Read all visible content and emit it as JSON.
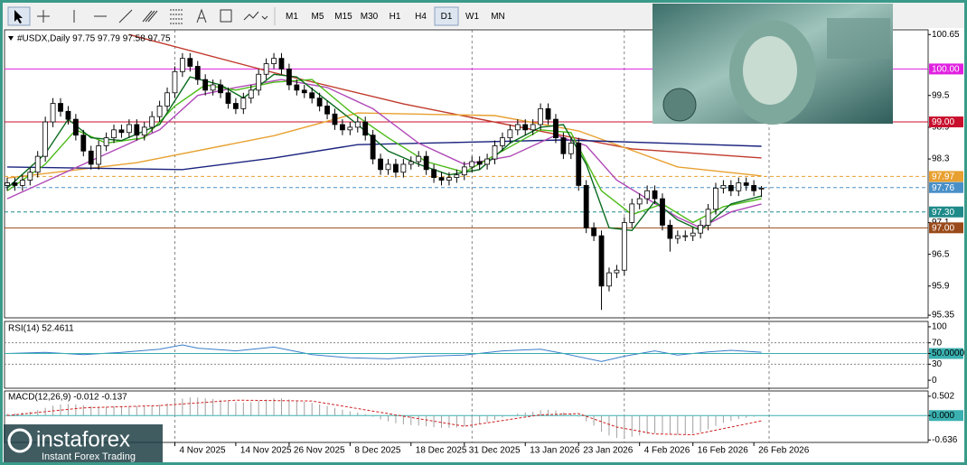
{
  "toolbar": {
    "timeframes": [
      "M1",
      "M5",
      "M15",
      "M30",
      "H1",
      "H4",
      "D1",
      "W1",
      "MN"
    ],
    "active": "D1"
  },
  "chart_data": [
    {
      "type": "candlestick",
      "title": "#USDX,Daily  97.75 97.79 97.58 97.75",
      "up_color": "#ffffff",
      "down_color": "#000000",
      "open": [
        97.8,
        97.85,
        97.8,
        97.9,
        98.05,
        98.35,
        99.0,
        99.35,
        99.2,
        99.05,
        98.75,
        98.45,
        98.2,
        98.55,
        98.7,
        98.85,
        98.8,
        98.95,
        98.75,
        98.9,
        99.1,
        99.3,
        99.55,
        99.95,
        100.2,
        100.05,
        99.8,
        99.6,
        99.7,
        99.55,
        99.35,
        99.25,
        99.45,
        99.6,
        99.9,
        100.1,
        100.2,
        100.0,
        99.7,
        99.6,
        99.55,
        99.45,
        99.3,
        99.15,
        98.95,
        98.85,
        98.9,
        99.0,
        98.75,
        98.3,
        98.1,
        98.2,
        98.05,
        98.2,
        98.25,
        98.35,
        98.1,
        97.95,
        97.9,
        97.95,
        98.0,
        98.15,
        98.25,
        98.2,
        98.3,
        98.55,
        98.7,
        98.85,
        98.95,
        98.85,
        98.95,
        99.25,
        99.05,
        98.7,
        98.4,
        98.6,
        97.8,
        97.0,
        96.85,
        95.9,
        96.15,
        96.2,
        97.1,
        97.45,
        97.55,
        97.7,
        97.55,
        97.05,
        96.8,
        96.85,
        96.85,
        96.9,
        97.05,
        97.35,
        97.75,
        97.8,
        97.7,
        97.85,
        97.8,
        97.75
      ],
      "high": [
        97.95,
        97.95,
        98.0,
        98.15,
        98.45,
        99.1,
        99.45,
        99.45,
        99.3,
        99.15,
        98.85,
        98.55,
        98.65,
        98.8,
        98.95,
        98.95,
        99.05,
        99.05,
        99.0,
        99.2,
        99.4,
        99.65,
        100.05,
        100.3,
        100.3,
        100.15,
        99.9,
        99.8,
        99.8,
        99.65,
        99.45,
        99.55,
        99.7,
        100.0,
        100.2,
        100.3,
        100.3,
        100.1,
        99.8,
        99.7,
        99.65,
        99.55,
        99.4,
        99.25,
        99.05,
        99.0,
        99.1,
        99.1,
        98.85,
        98.4,
        98.3,
        98.3,
        98.3,
        98.35,
        98.45,
        98.45,
        98.2,
        98.05,
        98.05,
        98.1,
        98.25,
        98.35,
        98.35,
        98.4,
        98.65,
        98.8,
        98.95,
        99.05,
        99.05,
        99.05,
        99.35,
        99.35,
        99.15,
        98.8,
        98.7,
        98.7,
        97.9,
        97.1,
        96.95,
        96.25,
        96.3,
        97.2,
        97.55,
        97.65,
        97.8,
        97.8,
        97.65,
        97.15,
        96.95,
        96.95,
        97.0,
        97.15,
        97.45,
        97.85,
        97.9,
        97.9,
        97.95,
        97.95,
        97.9,
        97.79
      ],
      "low": [
        97.7,
        97.7,
        97.7,
        97.8,
        97.95,
        98.25,
        98.9,
        99.1,
        98.95,
        98.65,
        98.35,
        98.1,
        98.1,
        98.45,
        98.6,
        98.7,
        98.7,
        98.65,
        98.65,
        98.8,
        99.0,
        99.2,
        99.45,
        99.85,
        99.95,
        99.7,
        99.5,
        99.5,
        99.45,
        99.25,
        99.15,
        99.15,
        99.35,
        99.5,
        99.8,
        100.0,
        99.9,
        99.6,
        99.5,
        99.45,
        99.35,
        99.2,
        99.05,
        98.85,
        98.75,
        98.75,
        98.8,
        98.65,
        98.2,
        98.0,
        98.0,
        97.95,
        97.95,
        98.1,
        98.15,
        98.0,
        97.85,
        97.8,
        97.8,
        97.85,
        97.9,
        98.05,
        98.1,
        98.1,
        98.2,
        98.45,
        98.6,
        98.75,
        98.75,
        98.75,
        98.85,
        98.95,
        98.6,
        98.3,
        98.3,
        97.7,
        96.9,
        96.75,
        95.45,
        95.8,
        96.05,
        96.1,
        97.0,
        97.35,
        97.45,
        97.45,
        96.95,
        96.55,
        96.7,
        96.75,
        96.75,
        96.8,
        96.95,
        97.25,
        97.65,
        97.6,
        97.6,
        97.7,
        97.6,
        97.58
      ],
      "close": [
        97.85,
        97.8,
        97.9,
        98.05,
        98.35,
        99.0,
        99.35,
        99.2,
        99.05,
        98.75,
        98.45,
        98.2,
        98.55,
        98.7,
        98.85,
        98.8,
        98.95,
        98.75,
        98.9,
        99.1,
        99.3,
        99.55,
        99.95,
        100.2,
        100.05,
        99.8,
        99.6,
        99.7,
        99.55,
        99.35,
        99.25,
        99.45,
        99.6,
        99.9,
        100.1,
        100.2,
        100.0,
        99.7,
        99.6,
        99.55,
        99.45,
        99.3,
        99.15,
        98.95,
        98.85,
        98.9,
        99.0,
        98.75,
        98.3,
        98.1,
        98.2,
        98.05,
        98.2,
        98.25,
        98.35,
        98.1,
        97.95,
        97.9,
        97.95,
        98.0,
        98.15,
        98.25,
        98.2,
        98.3,
        98.55,
        98.7,
        98.85,
        98.95,
        98.85,
        98.95,
        99.25,
        99.05,
        98.7,
        98.4,
        98.6,
        97.8,
        97.0,
        96.85,
        95.9,
        96.15,
        96.2,
        97.1,
        97.45,
        97.55,
        97.7,
        97.55,
        97.05,
        96.8,
        96.85,
        96.85,
        96.9,
        97.05,
        97.35,
        97.75,
        97.8,
        97.7,
        97.85,
        97.8,
        97.7,
        97.75
      ],
      "ylim": [
        95.3,
        100.74
      ],
      "yticks": [
        100.65,
        99.5,
        98.9,
        98.3,
        97.1,
        96.5,
        95.9,
        95.35
      ],
      "x_labels": [
        {
          "bar": 22,
          "label": "4 Nov 2025"
        },
        {
          "bar": 30,
          "label": "14 Nov 2025"
        },
        {
          "bar": 37,
          "label": "26 Nov 2025"
        },
        {
          "bar": 45,
          "label": "8 Dec 2025"
        },
        {
          "bar": 53,
          "label": "18 Dec 2025"
        },
        {
          "bar": 60,
          "label": "31 Dec 2025"
        },
        {
          "bar": 68,
          "label": "13 Jan 2026"
        },
        {
          "bar": 75,
          "label": "23 Jan 2026"
        },
        {
          "bar": 83,
          "label": "4 Feb 2026"
        },
        {
          "bar": 90,
          "label": "16 Feb 2026"
        },
        {
          "bar": 98,
          "label": "26 Feb 2026"
        }
      ],
      "separators": [
        22,
        61,
        81,
        100
      ],
      "levels": [
        {
          "value": 100.0,
          "label": "100.00",
          "color": "#e020e0",
          "style": "solid"
        },
        {
          "value": 99.0,
          "label": "99.00",
          "color": "#c8102e",
          "style": "solid"
        },
        {
          "value": 97.97,
          "label": "97.97",
          "color": "#e8a030",
          "style": "dashed"
        },
        {
          "value": 97.76,
          "label": "97.76",
          "color": "#4a90c8",
          "style": "dashed"
        },
        {
          "value": 97.3,
          "label": "97.30",
          "color": "#1e8a8a",
          "style": "dashed"
        },
        {
          "value": 97.0,
          "label": "97.00",
          "color": "#9a4a1a",
          "style": "solid"
        }
      ],
      "moving_averages": [
        {
          "color": "#c0392b",
          "x": [
            16,
            35,
            52,
            73,
            82,
            99
          ],
          "values": [
            100.65,
            99.93,
            99.34,
            98.74,
            98.49,
            98.32
          ]
        },
        {
          "color": "#e8a030",
          "x": [
            0,
            17,
            35,
            46,
            64,
            75,
            88,
            99
          ],
          "values": [
            97.94,
            98.23,
            98.74,
            99.17,
            99.12,
            98.83,
            98.15,
            97.98
          ]
        },
        {
          "color": "#1a237e",
          "x": [
            0,
            23,
            35,
            46,
            58,
            73,
            99
          ],
          "values": [
            98.15,
            98.1,
            98.32,
            98.57,
            98.61,
            98.66,
            98.54
          ]
        },
        {
          "color": "#b04ab8",
          "x": [
            0,
            10,
            20,
            25,
            30,
            36,
            42,
            48,
            54,
            60,
            66,
            72,
            76,
            80,
            84,
            88,
            91,
            95,
            99
          ],
          "values": [
            97.55,
            98.2,
            98.85,
            99.5,
            99.65,
            99.8,
            99.65,
            99.25,
            98.6,
            98.2,
            98.35,
            98.75,
            98.55,
            97.9,
            97.55,
            97.2,
            97.0,
            97.3,
            97.45
          ]
        },
        {
          "color": "#4cbb17",
          "x": [
            0,
            5,
            9,
            13,
            18,
            22,
            26,
            30,
            35,
            40,
            45,
            50,
            55,
            60,
            65,
            70,
            74,
            78,
            82,
            86,
            90,
            94,
            99
          ],
          "values": [
            97.7,
            98.2,
            98.85,
            98.6,
            98.7,
            99.3,
            99.7,
            99.6,
            99.75,
            99.8,
            99.2,
            98.7,
            98.25,
            98.05,
            98.45,
            98.85,
            98.8,
            97.7,
            97.25,
            97.45,
            97.1,
            97.4,
            97.55
          ]
        },
        {
          "color": "#0b6b1e",
          "x": [
            0,
            5,
            8,
            11,
            15,
            20,
            24,
            28,
            31,
            35,
            38,
            42,
            46,
            50,
            54,
            58,
            62,
            66,
            70,
            73,
            76,
            79,
            82,
            85,
            88,
            91,
            95,
            99
          ],
          "values": [
            97.75,
            98.4,
            99.05,
            98.7,
            98.65,
            98.95,
            99.85,
            99.7,
            99.45,
            99.9,
            99.85,
            99.4,
            98.95,
            98.45,
            98.2,
            98.0,
            98.1,
            98.6,
            98.9,
            98.95,
            98.2,
            97.0,
            96.95,
            97.5,
            97.15,
            96.95,
            97.45,
            97.6
          ]
        }
      ]
    },
    {
      "type": "line",
      "title": "RSI(14) 52.4611",
      "color": "#3a7dc9",
      "x": [
        0,
        5,
        10,
        15,
        20,
        23,
        25,
        30,
        35,
        40,
        45,
        50,
        55,
        60,
        65,
        70,
        73,
        78,
        81,
        85,
        88,
        92,
        95,
        99
      ],
      "values": [
        50,
        52,
        48,
        52,
        58,
        66,
        60,
        55,
        62,
        48,
        42,
        40,
        45,
        47,
        55,
        58,
        50,
        35,
        45,
        55,
        47,
        53,
        56,
        52.4611
      ],
      "ylim": [
        -15,
        110
      ],
      "yticks": [
        100,
        70,
        {
          "value": 50,
          "label": "50.0000"
        },
        30,
        0
      ],
      "dotted_levels": [
        70,
        30
      ]
    },
    {
      "type": "macd",
      "title": "MACD(12,26,9) -0.012 -0.137",
      "histogram_color": "#a0a0a0",
      "signal_color": "#d02020",
      "histogram": [
        0.05,
        0.06,
        0.08,
        0.1,
        0.14,
        0.2,
        0.26,
        0.29,
        0.3,
        0.29,
        0.27,
        0.24,
        0.23,
        0.23,
        0.24,
        0.24,
        0.25,
        0.24,
        0.24,
        0.25,
        0.28,
        0.32,
        0.38,
        0.44,
        0.47,
        0.47,
        0.45,
        0.43,
        0.41,
        0.38,
        0.35,
        0.34,
        0.35,
        0.38,
        0.42,
        0.45,
        0.45,
        0.42,
        0.39,
        0.36,
        0.33,
        0.29,
        0.25,
        0.2,
        0.15,
        0.11,
        0.08,
        0.04,
        -0.03,
        -0.1,
        -0.15,
        -0.2,
        -0.23,
        -0.25,
        -0.26,
        -0.28,
        -0.3,
        -0.32,
        -0.32,
        -0.31,
        -0.28,
        -0.25,
        -0.22,
        -0.17,
        -0.11,
        -0.05,
        0.0,
        0.05,
        0.08,
        0.1,
        0.14,
        0.15,
        0.13,
        0.08,
        0.05,
        -0.03,
        -0.15,
        -0.26,
        -0.42,
        -0.52,
        -0.58,
        -0.58,
        -0.55,
        -0.52,
        -0.48,
        -0.46,
        -0.47,
        -0.5,
        -0.5,
        -0.49,
        -0.47,
        -0.43,
        -0.36,
        -0.27,
        -0.19,
        -0.14,
        -0.09,
        -0.06,
        -0.03,
        -0.012
      ],
      "signal_x": [
        0,
        10,
        20,
        30,
        40,
        50,
        60,
        70,
        75,
        80,
        85,
        90,
        95,
        99
      ],
      "signal": [
        0.0,
        0.2,
        0.26,
        0.4,
        0.38,
        0.05,
        -0.28,
        0.02,
        0.05,
        -0.3,
        -0.48,
        -0.5,
        -0.3,
        -0.137
      ],
      "ylim": [
        -0.7,
        0.64
      ],
      "yticks": [
        0.502,
        {
          "value": 0,
          "label": "0.000"
        },
        -0.636
      ]
    }
  ],
  "logo": {
    "name": "instaforex",
    "tagline": "Instant Forex Trading"
  }
}
